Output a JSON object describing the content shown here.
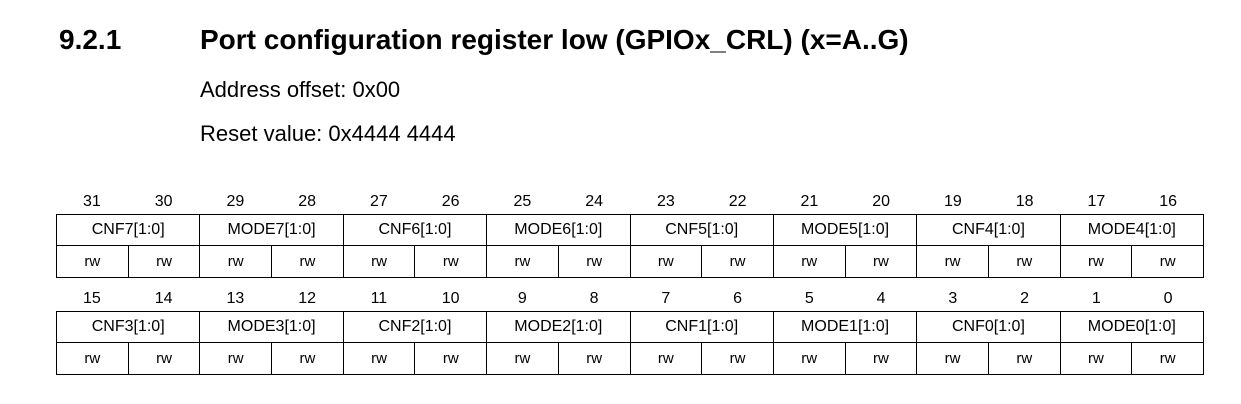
{
  "section": {
    "number": "9.2.1",
    "title": "Port configuration register low (GPIOx_CRL) (x=A..G)",
    "address_offset": "Address offset: 0x00",
    "reset_value": "Reset value: 0x4444 4444"
  },
  "register": {
    "upper": {
      "bits": [
        "31",
        "30",
        "29",
        "28",
        "27",
        "26",
        "25",
        "24",
        "23",
        "22",
        "21",
        "20",
        "19",
        "18",
        "17",
        "16"
      ],
      "fields": [
        "CNF7[1:0]",
        "MODE7[1:0]",
        "CNF6[1:0]",
        "MODE6[1:0]",
        "CNF5[1:0]",
        "MODE5[1:0]",
        "CNF4[1:0]",
        "MODE4[1:0]"
      ],
      "access": [
        "rw",
        "rw",
        "rw",
        "rw",
        "rw",
        "rw",
        "rw",
        "rw",
        "rw",
        "rw",
        "rw",
        "rw",
        "rw",
        "rw",
        "rw",
        "rw"
      ]
    },
    "lower": {
      "bits": [
        "15",
        "14",
        "13",
        "12",
        "11",
        "10",
        "9",
        "8",
        "7",
        "6",
        "5",
        "4",
        "3",
        "2",
        "1",
        "0"
      ],
      "fields": [
        "CNF3[1:0]",
        "MODE3[1:0]",
        "CNF2[1:0]",
        "MODE2[1:0]",
        "CNF1[1:0]",
        "MODE1[1:0]",
        "CNF0[1:0]",
        "MODE0[1:0]"
      ],
      "access": [
        "rw",
        "rw",
        "rw",
        "rw",
        "rw",
        "rw",
        "rw",
        "rw",
        "rw",
        "rw",
        "rw",
        "rw",
        "rw",
        "rw",
        "rw",
        "rw"
      ]
    }
  }
}
